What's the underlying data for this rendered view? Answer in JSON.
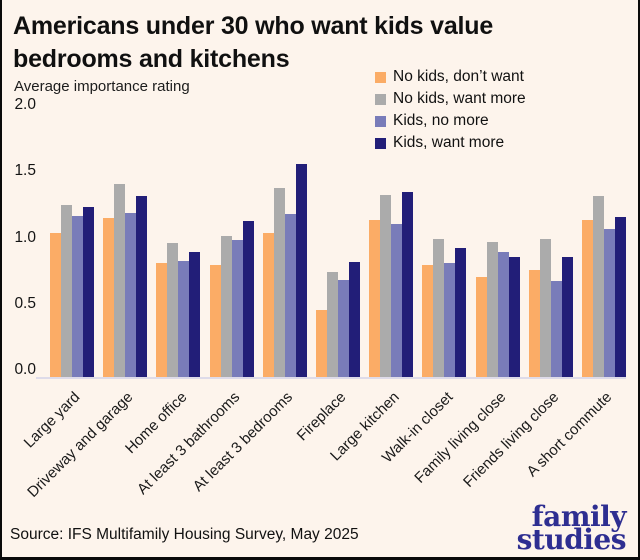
{
  "title_line1": "Americans under 30 who want kids value",
  "title_line2": "bedrooms and kitchens",
  "subtitle": "Average importance rating",
  "source": "Source: IFS Multifamily Housing Survey, May 2025",
  "logo": {
    "line1": "family",
    "line2": "studies"
  },
  "colors": {
    "background": "#FDF4EC",
    "axis_line": "#DEDBE9",
    "text": "#111111",
    "logo": "#2E2E91"
  },
  "chart_data": {
    "type": "bar",
    "title": "Americans under 30 who want kids value bedrooms and kitchens",
    "ylabel": "Average importance rating",
    "ylim": [
      0,
      2.0
    ],
    "yticks": [
      0.0,
      0.5,
      1.0,
      1.5,
      2.0
    ],
    "ytick_labels": [
      "0.0",
      "0.5",
      "1.0",
      "1.5",
      "2.0"
    ],
    "grid": false,
    "legend_position": "top-right",
    "categories": [
      "Large yard",
      "Driveway and garage",
      "Home office",
      "At least 3 bathrooms",
      "At least 3 bedrooms",
      "Fireplace",
      "Large kitchen",
      "Walk-in closet",
      "Family living close",
      "Friends living close",
      "A short commute"
    ],
    "series": [
      {
        "name": "No kids, don’t want",
        "color": "#FBAC66",
        "values": [
          1.06,
          1.17,
          0.84,
          0.83,
          1.06,
          0.5,
          1.16,
          0.83,
          0.74,
          0.79,
          1.16
        ]
      },
      {
        "name": "No kids, want more",
        "color": "#ABABAB",
        "values": [
          1.27,
          1.42,
          0.99,
          1.04,
          1.39,
          0.78,
          1.34,
          1.02,
          1.0,
          1.02,
          1.33
        ]
      },
      {
        "name": "Kids, no more",
        "color": "#797CB9",
        "values": [
          1.19,
          1.21,
          0.86,
          1.01,
          1.2,
          0.72,
          1.13,
          0.84,
          0.92,
          0.71,
          1.09
        ]
      },
      {
        "name": "Kids, want more",
        "color": "#221E78",
        "values": [
          1.25,
          1.33,
          0.92,
          1.15,
          1.57,
          0.85,
          1.36,
          0.95,
          0.89,
          0.89,
          1.18
        ]
      }
    ]
  }
}
